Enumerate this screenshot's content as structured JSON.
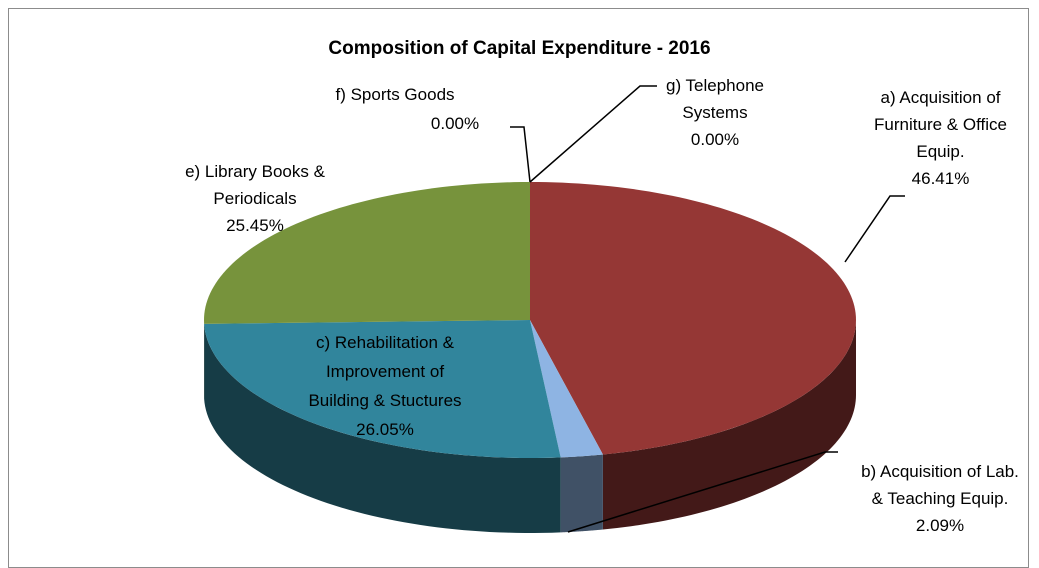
{
  "chart_data": {
    "type": "pie3d",
    "title": "Composition of Capital Expenditure - 2016",
    "categories": [
      "a) Acquisition of Furniture & Office Equip.",
      "b) Acquisition of Lab. & Teaching Equip.",
      "c) Rehabilitation & Improvement of Building & Stuctures",
      "e) Library Books & Periodicals",
      "f) Sports Goods",
      "g) Telephone Systems"
    ],
    "values": [
      46.41,
      2.09,
      26.05,
      25.45,
      0,
      0
    ],
    "value_labels": [
      "46.41%",
      "2.09%",
      "26.05%",
      "25.45%",
      "0.00%",
      "0.00%"
    ],
    "colors": [
      "#953735",
      "#8eb4e3",
      "#31859c",
      "#77933c",
      "#4bacc6",
      "#f79646"
    ]
  }
}
